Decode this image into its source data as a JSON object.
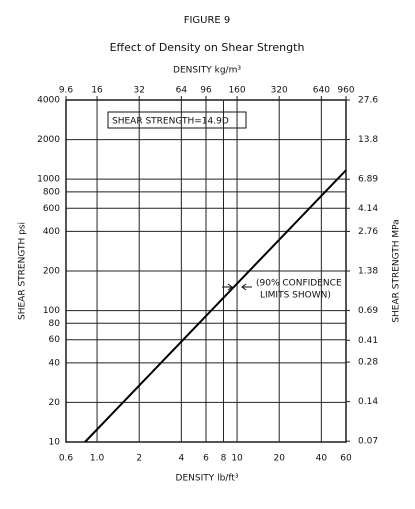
{
  "chart_data": {
    "type": "line",
    "title": "FIGURE 9",
    "subtitle": "Effect of Density on Shear Strength",
    "x_label": "DENSITY lb/ft³",
    "x2_label": "DENSITY kg/m³",
    "y_label": "SHEAR STRENGTH psi",
    "y2_label": "SHEAR STRENGTH MPa",
    "log_x": true,
    "log_y": true,
    "grid": true,
    "xlim": [
      0.6,
      60
    ],
    "xticks": [
      0.6,
      {
        "value": 1,
        "label": "1.0"
      },
      2,
      4,
      6,
      8,
      10,
      20,
      40,
      60
    ],
    "x2lim": [
      9.6,
      960
    ],
    "x2ticks": [
      9.6,
      16,
      32,
      64,
      96,
      160,
      320,
      640,
      960
    ],
    "ylim": [
      10,
      4000
    ],
    "yticks": [
      10,
      20,
      40,
      60,
      80,
      100,
      200,
      400,
      600,
      800,
      1000,
      2000,
      4000
    ],
    "y2lim": [
      0.069,
      27.6
    ],
    "y2ticks": [
      0.07,
      0.14,
      0.28,
      0.41,
      0.69,
      1.38,
      2.76,
      4.14,
      6.89,
      13.8,
      27.6
    ],
    "x": [
      0.82,
      60
    ],
    "series": [
      {
        "color": "#000000",
        "values": [
          10,
          1170
        ]
      }
    ],
    "annotations": [
      "SHEAR STRENGTH=14.9D",
      "(90% CONFIDENCE",
      "LIMITS SHOWN)"
    ]
  }
}
